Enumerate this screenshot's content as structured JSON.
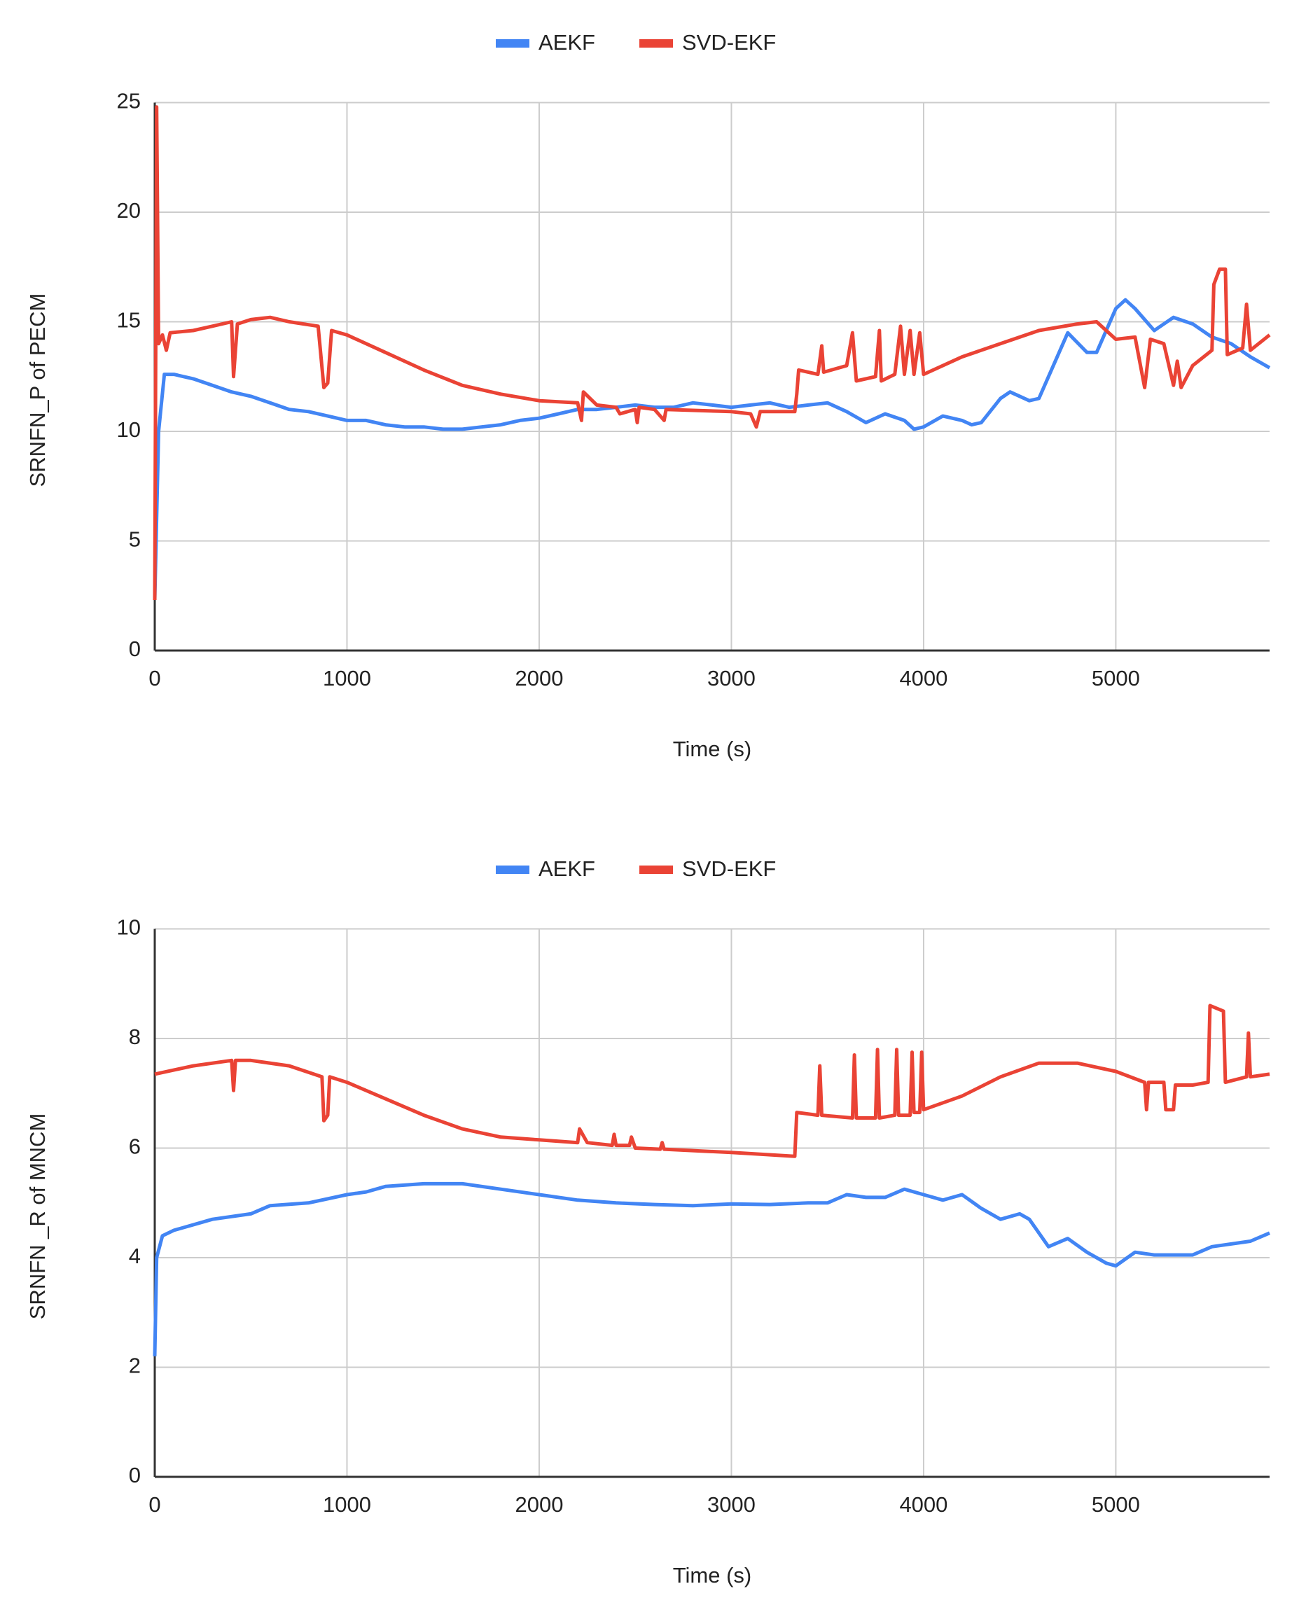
{
  "chart_data": [
    {
      "type": "line",
      "xlabel": "Time (s)",
      "ylabel": "SRNFN_P of PECM",
      "xlim": [
        0,
        5800
      ],
      "xticks": [
        0,
        1000,
        2000,
        3000,
        4000,
        5000
      ],
      "ylim": [
        0,
        25
      ],
      "yticks": [
        0,
        5,
        10,
        15,
        20,
        25
      ],
      "grid": true,
      "legend": "top",
      "series": [
        {
          "name": "AEKF",
          "color": "#4285f4",
          "x": [
            0,
            20,
            50,
            100,
            200,
            300,
            400,
            500,
            600,
            700,
            800,
            900,
            1000,
            1100,
            1200,
            1300,
            1400,
            1500,
            1600,
            1700,
            1800,
            1900,
            2000,
            2100,
            2200,
            2300,
            2400,
            2500,
            2600,
            2700,
            2800,
            2900,
            3000,
            3100,
            3200,
            3300,
            3400,
            3500,
            3600,
            3700,
            3800,
            3900,
            3950,
            4000,
            4100,
            4200,
            4250,
            4300,
            4400,
            4450,
            4550,
            4600,
            4700,
            4750,
            4850,
            4900,
            5000,
            5050,
            5100,
            5200,
            5300,
            5400,
            5500,
            5600,
            5700,
            5800
          ],
          "values": [
            2.3,
            10,
            12.6,
            12.6,
            12.4,
            12.1,
            11.8,
            11.6,
            11.3,
            11.0,
            10.9,
            10.7,
            10.5,
            10.5,
            10.3,
            10.2,
            10.2,
            10.1,
            10.1,
            10.2,
            10.3,
            10.5,
            10.6,
            10.8,
            11.0,
            11.0,
            11.1,
            11.2,
            11.1,
            11.1,
            11.3,
            11.2,
            11.1,
            11.2,
            11.3,
            11.1,
            11.2,
            11.3,
            10.9,
            10.4,
            10.8,
            10.5,
            10.1,
            10.2,
            10.7,
            10.5,
            10.3,
            10.4,
            11.5,
            11.8,
            11.4,
            11.5,
            13.5,
            14.5,
            13.6,
            13.6,
            15.6,
            16.0,
            15.6,
            14.6,
            15.2,
            14.9,
            14.3,
            14.0,
            13.4,
            12.9
          ]
        },
        {
          "name": "SVD-EKF",
          "color": "#ea4335",
          "x": [
            0,
            10,
            20,
            40,
            60,
            80,
            200,
            300,
            400,
            410,
            430,
            500,
            600,
            700,
            850,
            880,
            900,
            920,
            1000,
            1200,
            1400,
            1600,
            1800,
            2000,
            2200,
            2220,
            2230,
            2300,
            2400,
            2420,
            2500,
            2510,
            2520,
            2600,
            2650,
            2660,
            3000,
            3100,
            3130,
            3150,
            3330,
            3340,
            3350,
            3450,
            3470,
            3480,
            3600,
            3630,
            3650,
            3750,
            3770,
            3780,
            3850,
            3880,
            3900,
            3930,
            3950,
            3980,
            4000,
            4200,
            4400,
            4600,
            4800,
            4900,
            5000,
            5100,
            5150,
            5180,
            5250,
            5300,
            5320,
            5340,
            5400,
            5500,
            5510,
            5540,
            5570,
            5580,
            5660,
            5680,
            5700,
            5800
          ],
          "values": [
            2.3,
            24.8,
            14,
            14.4,
            13.7,
            14.5,
            14.6,
            14.8,
            15.0,
            12.5,
            14.9,
            15.1,
            15.2,
            15.0,
            14.8,
            12.0,
            12.2,
            14.6,
            14.4,
            13.6,
            12.8,
            12.1,
            11.7,
            11.4,
            11.3,
            10.5,
            11.8,
            11.2,
            11.1,
            10.8,
            11.0,
            10.4,
            11.1,
            11.0,
            10.5,
            11.0,
            10.9,
            10.8,
            10.2,
            10.9,
            10.9,
            11.7,
            12.8,
            12.6,
            13.9,
            12.7,
            13.0,
            14.5,
            12.3,
            12.5,
            14.6,
            12.3,
            12.6,
            14.8,
            12.6,
            14.6,
            12.6,
            14.5,
            12.6,
            13.4,
            14.0,
            14.6,
            14.9,
            15.0,
            14.2,
            14.3,
            12.0,
            14.2,
            14.0,
            12.1,
            13.2,
            12.0,
            13.0,
            13.7,
            16.7,
            17.4,
            17.4,
            13.5,
            13.8,
            15.8,
            13.7,
            14.4
          ]
        }
      ]
    },
    {
      "type": "line",
      "xlabel": "Time (s)",
      "ylabel": "SRNFN _R of MNCM",
      "xlim": [
        0,
        5800
      ],
      "xticks": [
        0,
        1000,
        2000,
        3000,
        4000,
        5000
      ],
      "ylim": [
        0,
        10
      ],
      "yticks": [
        0,
        2,
        4,
        6,
        8,
        10
      ],
      "grid": true,
      "legend": "top",
      "series": [
        {
          "name": "AEKF",
          "color": "#4285f4",
          "x": [
            0,
            10,
            40,
            100,
            300,
            500,
            600,
            800,
            1000,
            1100,
            1200,
            1400,
            1600,
            1800,
            2000,
            2200,
            2400,
            2600,
            2800,
            3000,
            3200,
            3400,
            3500,
            3600,
            3700,
            3800,
            3900,
            4000,
            4100,
            4200,
            4300,
            4400,
            4500,
            4550,
            4650,
            4750,
            4850,
            4950,
            5000,
            5100,
            5200,
            5400,
            5500,
            5700,
            5800
          ],
          "values": [
            2.2,
            4.0,
            4.4,
            4.5,
            4.7,
            4.8,
            4.95,
            5.0,
            5.15,
            5.2,
            5.3,
            5.35,
            5.35,
            5.25,
            5.15,
            5.05,
            5.0,
            4.97,
            4.95,
            4.98,
            4.97,
            5.0,
            5.0,
            5.15,
            5.1,
            5.1,
            5.25,
            5.15,
            5.05,
            5.15,
            4.9,
            4.7,
            4.8,
            4.7,
            4.2,
            4.35,
            4.1,
            3.9,
            3.85,
            4.1,
            4.05,
            4.05,
            4.2,
            4.3,
            4.45
          ]
        },
        {
          "name": "SVD-EKF",
          "color": "#ea4335",
          "x": [
            0,
            200,
            400,
            410,
            420,
            500,
            700,
            870,
            880,
            900,
            910,
            1000,
            1200,
            1400,
            1600,
            1800,
            2000,
            2200,
            2210,
            2250,
            2380,
            2390,
            2400,
            2470,
            2480,
            2500,
            2630,
            2640,
            2650,
            3000,
            3330,
            3340,
            3450,
            3460,
            3470,
            3630,
            3640,
            3650,
            3750,
            3760,
            3770,
            3850,
            3860,
            3870,
            3930,
            3940,
            3950,
            3980,
            3990,
            4000,
            4200,
            4400,
            4600,
            4800,
            5000,
            5150,
            5160,
            5170,
            5250,
            5260,
            5300,
            5310,
            5400,
            5480,
            5490,
            5560,
            5570,
            5680,
            5690,
            5700,
            5800
          ],
          "values": [
            7.35,
            7.5,
            7.6,
            7.05,
            7.6,
            7.6,
            7.5,
            7.3,
            6.5,
            6.6,
            7.3,
            7.2,
            6.9,
            6.6,
            6.35,
            6.2,
            6.15,
            6.1,
            6.35,
            6.1,
            6.05,
            6.25,
            6.05,
            6.05,
            6.2,
            6.0,
            5.98,
            6.1,
            5.98,
            5.92,
            5.85,
            6.65,
            6.6,
            7.5,
            6.6,
            6.55,
            7.7,
            6.55,
            6.55,
            7.8,
            6.55,
            6.6,
            7.8,
            6.6,
            6.6,
            7.75,
            6.65,
            6.65,
            7.75,
            6.7,
            6.95,
            7.3,
            7.55,
            7.55,
            7.4,
            7.2,
            6.7,
            7.2,
            7.2,
            6.7,
            6.7,
            7.15,
            7.15,
            7.2,
            8.6,
            8.5,
            7.2,
            7.3,
            8.1,
            7.3,
            7.35
          ]
        }
      ]
    }
  ]
}
